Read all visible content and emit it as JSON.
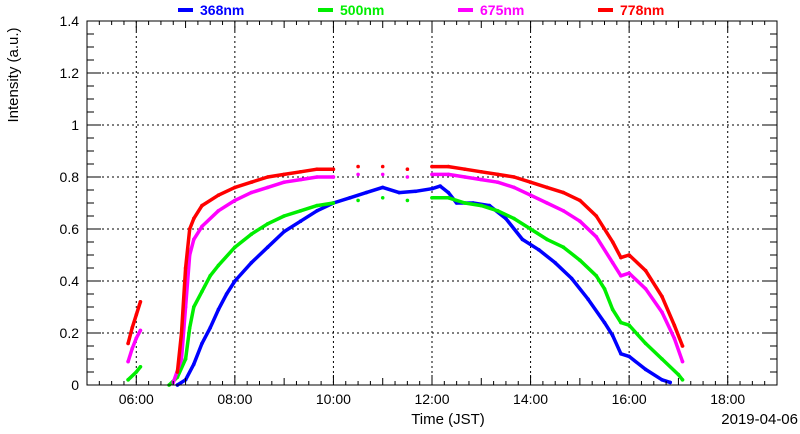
{
  "chart_data": {
    "type": "scatter",
    "title": "",
    "xlabel": "Time (JST)",
    "ylabel": "Intensity (a.u.)",
    "date_label": "2019-04-06",
    "xlim": [
      "05:00",
      "19:00"
    ],
    "ylim": [
      0,
      1.4
    ],
    "grid": true,
    "legend_position": "top",
    "x_ticks": [
      "06:00",
      "08:00",
      "10:00",
      "12:00",
      "14:00",
      "16:00",
      "18:00"
    ],
    "y_ticks": [
      "0",
      "0.2",
      "0.4",
      "0.6",
      "0.8",
      "1",
      "1.2",
      "1.4"
    ],
    "series": [
      {
        "name": "368nm",
        "color": "#0000ff",
        "points": [
          [
            "06:50",
            0.0
          ],
          [
            "07:00",
            0.02
          ],
          [
            "07:10",
            0.08
          ],
          [
            "07:20",
            0.16
          ],
          [
            "07:30",
            0.22
          ],
          [
            "07:40",
            0.29
          ],
          [
            "07:50",
            0.35
          ],
          [
            "08:00",
            0.4
          ],
          [
            "08:20",
            0.47
          ],
          [
            "08:40",
            0.53
          ],
          [
            "09:00",
            0.59
          ],
          [
            "09:20",
            0.63
          ],
          [
            "09:40",
            0.67
          ],
          [
            "10:00",
            0.7
          ],
          [
            "10:20",
            0.72
          ],
          [
            "10:40",
            0.74
          ],
          [
            "11:00",
            0.76
          ],
          [
            "11:20",
            0.74
          ],
          [
            "11:40",
            0.745
          ],
          [
            "12:00",
            0.755
          ],
          [
            "12:10",
            0.765
          ],
          [
            "12:20",
            0.74
          ],
          [
            "12:30",
            0.7
          ],
          [
            "12:50",
            0.7
          ],
          [
            "13:10",
            0.69
          ],
          [
            "13:30",
            0.64
          ],
          [
            "13:50",
            0.56
          ],
          [
            "14:10",
            0.52
          ],
          [
            "14:30",
            0.47
          ],
          [
            "14:50",
            0.41
          ],
          [
            "15:10",
            0.33
          ],
          [
            "15:30",
            0.24
          ],
          [
            "15:40",
            0.19
          ],
          [
            "15:50",
            0.12
          ],
          [
            "16:00",
            0.11
          ],
          [
            "16:20",
            0.06
          ],
          [
            "16:40",
            0.02
          ],
          [
            "16:50",
            0.01
          ]
        ]
      },
      {
        "name": "500nm",
        "color": "#00ee00",
        "points": [
          [
            "05:50",
            0.02
          ],
          [
            "06:00",
            0.05
          ],
          [
            "06:05",
            0.07
          ],
          [
            "06:40",
            0.0
          ],
          [
            "06:50",
            0.03
          ],
          [
            "07:00",
            0.1
          ],
          [
            "07:05",
            0.22
          ],
          [
            "07:10",
            0.3
          ],
          [
            "07:20",
            0.36
          ],
          [
            "07:30",
            0.42
          ],
          [
            "07:40",
            0.46
          ],
          [
            "08:00",
            0.53
          ],
          [
            "08:20",
            0.58
          ],
          [
            "08:40",
            0.62
          ],
          [
            "09:00",
            0.65
          ],
          [
            "09:20",
            0.67
          ],
          [
            "09:40",
            0.69
          ],
          [
            "10:00",
            0.7
          ],
          [
            "10:30",
            0.71
          ],
          [
            "11:00",
            0.72
          ],
          [
            "11:30",
            0.71
          ],
          [
            "12:00",
            0.72
          ],
          [
            "12:20",
            0.72
          ],
          [
            "12:40",
            0.7
          ],
          [
            "13:00",
            0.69
          ],
          [
            "13:20",
            0.67
          ],
          [
            "13:40",
            0.64
          ],
          [
            "14:00",
            0.6
          ],
          [
            "14:20",
            0.56
          ],
          [
            "14:40",
            0.53
          ],
          [
            "15:00",
            0.48
          ],
          [
            "15:20",
            0.42
          ],
          [
            "15:30",
            0.37
          ],
          [
            "15:40",
            0.29
          ],
          [
            "15:50",
            0.24
          ],
          [
            "16:00",
            0.23
          ],
          [
            "16:20",
            0.16
          ],
          [
            "16:40",
            0.1
          ],
          [
            "17:00",
            0.04
          ],
          [
            "17:05",
            0.02
          ]
        ]
      },
      {
        "name": "675nm",
        "color": "#ff00ff",
        "points": [
          [
            "05:50",
            0.09
          ],
          [
            "05:55",
            0.14
          ],
          [
            "06:00",
            0.18
          ],
          [
            "06:05",
            0.21
          ],
          [
            "06:45",
            0.01
          ],
          [
            "06:55",
            0.1
          ],
          [
            "07:00",
            0.3
          ],
          [
            "07:05",
            0.5
          ],
          [
            "07:10",
            0.56
          ],
          [
            "07:20",
            0.61
          ],
          [
            "07:40",
            0.67
          ],
          [
            "08:00",
            0.71
          ],
          [
            "08:20",
            0.74
          ],
          [
            "08:40",
            0.76
          ],
          [
            "09:00",
            0.78
          ],
          [
            "09:20",
            0.79
          ],
          [
            "09:40",
            0.8
          ],
          [
            "10:00",
            0.8
          ],
          [
            "10:30",
            0.81
          ],
          [
            "11:00",
            0.81
          ],
          [
            "11:30",
            0.8
          ],
          [
            "12:00",
            0.81
          ],
          [
            "12:20",
            0.81
          ],
          [
            "12:40",
            0.8
          ],
          [
            "13:00",
            0.79
          ],
          [
            "13:20",
            0.78
          ],
          [
            "13:40",
            0.76
          ],
          [
            "14:00",
            0.73
          ],
          [
            "14:20",
            0.7
          ],
          [
            "14:40",
            0.67
          ],
          [
            "15:00",
            0.63
          ],
          [
            "15:20",
            0.57
          ],
          [
            "15:40",
            0.47
          ],
          [
            "15:50",
            0.42
          ],
          [
            "16:00",
            0.43
          ],
          [
            "16:20",
            0.37
          ],
          [
            "16:40",
            0.28
          ],
          [
            "16:55",
            0.18
          ],
          [
            "17:05",
            0.09
          ]
        ]
      },
      {
        "name": "778nm",
        "color": "#ff0000",
        "points": [
          [
            "05:50",
            0.16
          ],
          [
            "05:55",
            0.22
          ],
          [
            "06:00",
            0.27
          ],
          [
            "06:05",
            0.32
          ],
          [
            "06:50",
            0.05
          ],
          [
            "06:55",
            0.2
          ],
          [
            "07:00",
            0.45
          ],
          [
            "07:05",
            0.6
          ],
          [
            "07:10",
            0.64
          ],
          [
            "07:20",
            0.69
          ],
          [
            "07:40",
            0.73
          ],
          [
            "08:00",
            0.76
          ],
          [
            "08:20",
            0.78
          ],
          [
            "08:40",
            0.8
          ],
          [
            "09:00",
            0.81
          ],
          [
            "09:20",
            0.82
          ],
          [
            "09:40",
            0.83
          ],
          [
            "10:00",
            0.83
          ],
          [
            "10:30",
            0.84
          ],
          [
            "11:00",
            0.84
          ],
          [
            "11:30",
            0.83
          ],
          [
            "12:00",
            0.84
          ],
          [
            "12:20",
            0.84
          ],
          [
            "12:40",
            0.83
          ],
          [
            "13:00",
            0.82
          ],
          [
            "13:20",
            0.81
          ],
          [
            "13:40",
            0.8
          ],
          [
            "14:00",
            0.78
          ],
          [
            "14:20",
            0.76
          ],
          [
            "14:40",
            0.74
          ],
          [
            "15:00",
            0.71
          ],
          [
            "15:20",
            0.65
          ],
          [
            "15:40",
            0.55
          ],
          [
            "15:50",
            0.49
          ],
          [
            "16:00",
            0.5
          ],
          [
            "16:20",
            0.44
          ],
          [
            "16:40",
            0.34
          ],
          [
            "16:55",
            0.23
          ],
          [
            "17:05",
            0.15
          ]
        ]
      }
    ]
  }
}
